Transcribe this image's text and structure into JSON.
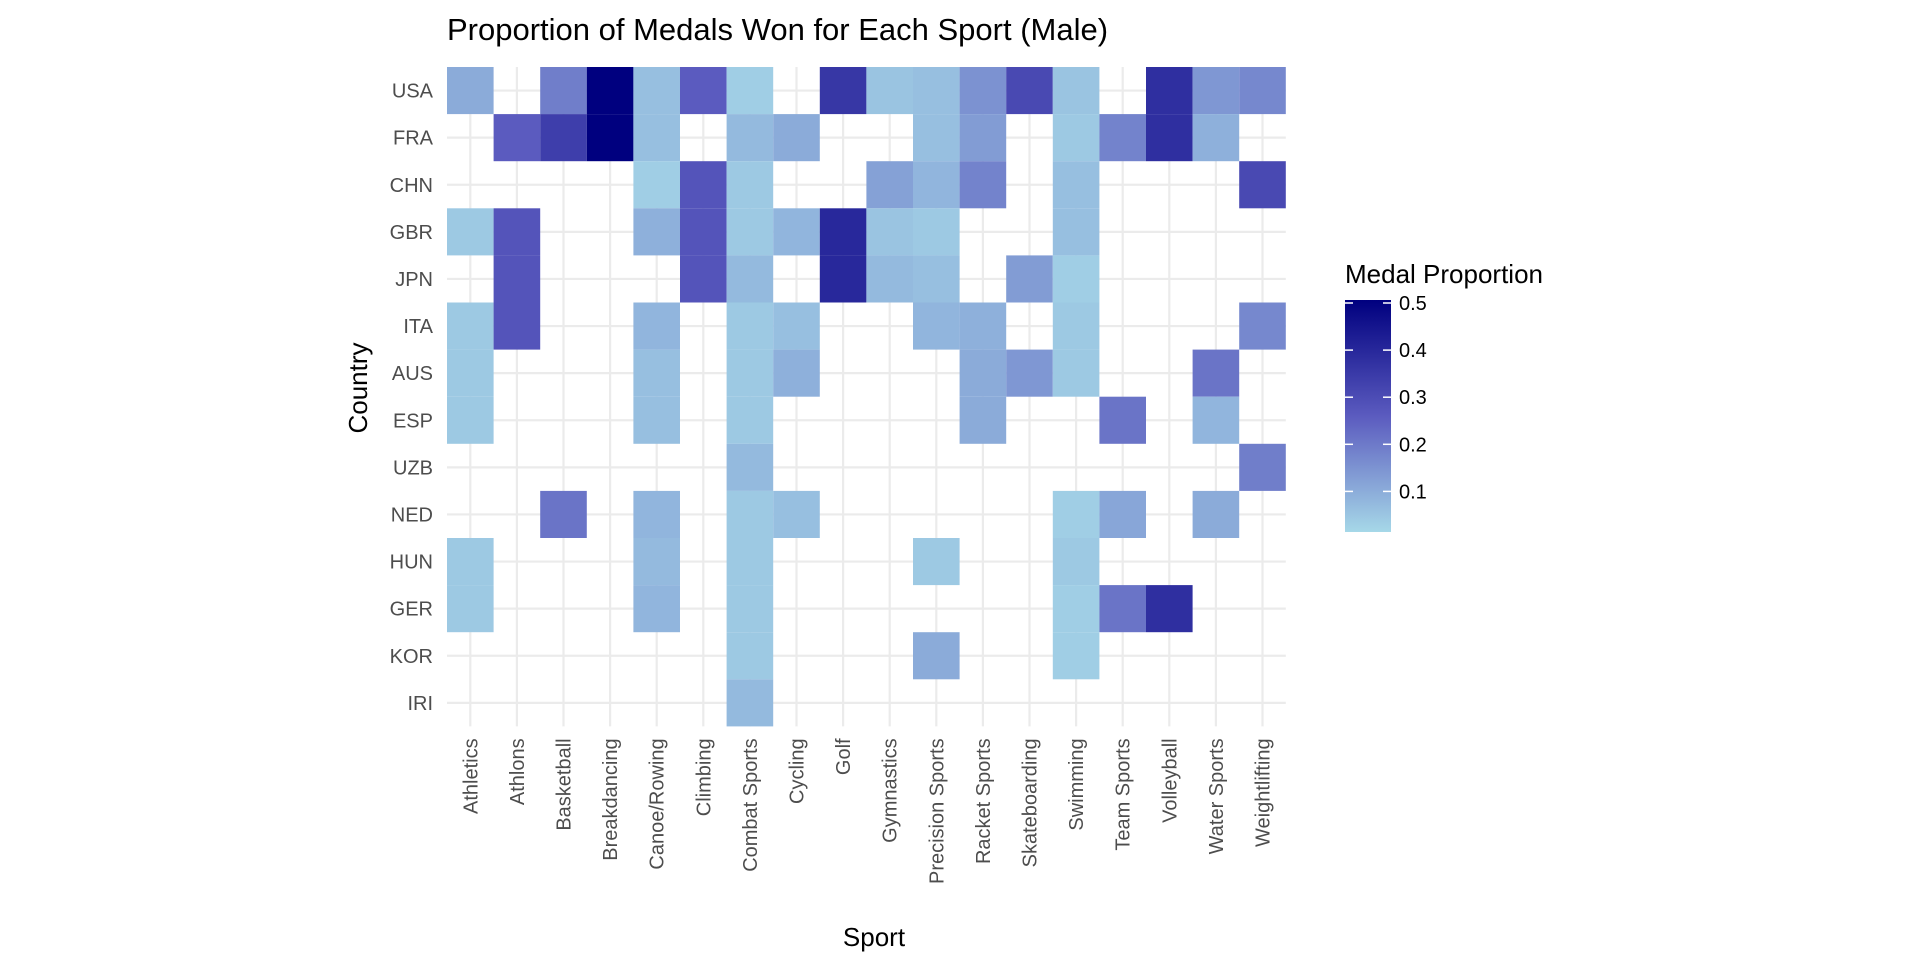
{
  "chart_data": {
    "type": "heatmap",
    "title": "Proportion of Medals Won for Each Sport (Male)",
    "xlabel": "Sport",
    "ylabel": "Country",
    "x_categories": [
      "Athletics",
      "Athlons",
      "Basketball",
      "Breakdancing",
      "Canoe/Rowing",
      "Climbing",
      "Combat Sports",
      "Cycling",
      "Golf",
      "Gymnastics",
      "Precision Sports",
      "Racket Sports",
      "Skateboarding",
      "Swimming",
      "Team Sports",
      "Volleyball",
      "Water Sports",
      "Weightlifting"
    ],
    "y_categories": [
      "USA",
      "FRA",
      "CHN",
      "GBR",
      "JPN",
      "ITA",
      "AUS",
      "ESP",
      "UZB",
      "NED",
      "HUN",
      "GER",
      "KOR",
      "IRI"
    ],
    "values": [
      [
        0.09,
        null,
        0.18,
        0.5,
        0.05,
        0.25,
        0.02,
        null,
        0.35,
        0.04,
        0.05,
        0.14,
        0.3,
        0.04,
        null,
        0.37,
        0.13,
        0.16
      ],
      [
        null,
        0.25,
        0.33,
        0.5,
        0.05,
        null,
        0.06,
        0.09,
        null,
        null,
        0.05,
        0.12,
        null,
        0.03,
        0.17,
        0.37,
        0.08,
        null
      ],
      [
        null,
        null,
        null,
        null,
        0.02,
        0.27,
        0.03,
        null,
        null,
        0.11,
        0.07,
        0.17,
        null,
        0.05,
        null,
        null,
        null,
        0.3
      ],
      [
        0.03,
        0.27,
        null,
        null,
        0.08,
        0.27,
        0.03,
        0.07,
        0.39,
        0.04,
        0.03,
        null,
        null,
        0.05,
        null,
        null,
        null,
        null
      ],
      [
        null,
        0.27,
        null,
        null,
        null,
        0.27,
        0.06,
        null,
        0.39,
        0.06,
        0.05,
        null,
        0.12,
        0.02,
        null,
        null,
        null,
        null
      ],
      [
        0.03,
        0.27,
        null,
        null,
        0.07,
        null,
        0.03,
        0.05,
        null,
        null,
        0.07,
        0.08,
        null,
        0.03,
        null,
        null,
        null,
        0.16
      ],
      [
        0.03,
        null,
        null,
        null,
        0.05,
        null,
        0.03,
        0.08,
        null,
        null,
        null,
        0.09,
        0.13,
        0.03,
        null,
        null,
        0.2,
        null
      ],
      [
        0.03,
        null,
        null,
        null,
        0.05,
        null,
        0.03,
        null,
        null,
        null,
        null,
        0.09,
        null,
        null,
        0.2,
        null,
        0.07,
        null
      ],
      [
        null,
        null,
        null,
        null,
        null,
        null,
        0.06,
        null,
        null,
        null,
        null,
        null,
        null,
        null,
        null,
        null,
        null,
        0.18
      ],
      [
        null,
        null,
        0.2,
        null,
        0.07,
        null,
        0.03,
        0.05,
        null,
        null,
        null,
        null,
        null,
        0.02,
        0.1,
        null,
        0.09,
        null
      ],
      [
        0.03,
        null,
        null,
        null,
        0.06,
        null,
        0.03,
        null,
        null,
        null,
        0.03,
        null,
        null,
        0.03,
        null,
        null,
        null,
        null
      ],
      [
        0.03,
        null,
        null,
        null,
        0.07,
        null,
        0.03,
        null,
        null,
        null,
        null,
        null,
        null,
        0.02,
        0.2,
        0.37,
        null,
        null
      ],
      [
        null,
        null,
        null,
        null,
        null,
        null,
        0.03,
        null,
        null,
        null,
        0.09,
        null,
        null,
        0.02,
        null,
        null,
        null,
        null
      ],
      [
        null,
        null,
        null,
        null,
        null,
        null,
        0.06,
        null,
        null,
        null,
        null,
        null,
        null,
        null,
        null,
        null,
        null,
        null
      ]
    ],
    "color_scale": {
      "low": "#a6d8e8",
      "mid": "#5b5bbf",
      "high": "#00007f",
      "range": [
        0,
        0.5
      ]
    },
    "legend": {
      "title": "Medal Proportion",
      "ticks": [
        0.5,
        0.4,
        0.3,
        0.2,
        0.1
      ],
      "tick_labels": [
        "0.5",
        "0.4",
        "0.3",
        "0.2",
        "0.1"
      ],
      "placement": "right"
    },
    "grid": true
  }
}
